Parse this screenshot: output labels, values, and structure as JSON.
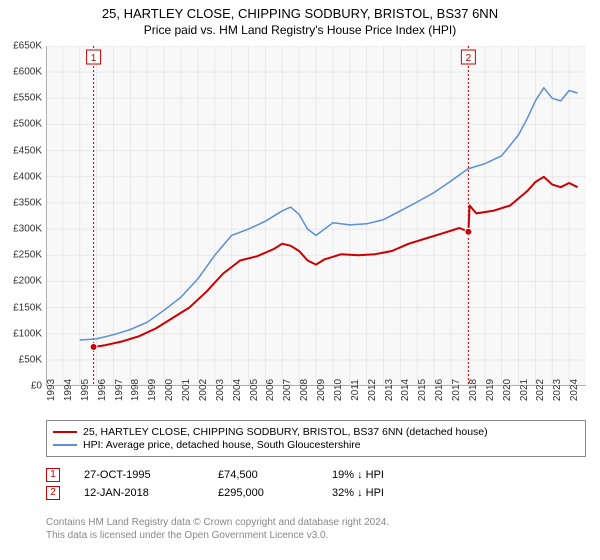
{
  "title": "25, HARTLEY CLOSE, CHIPPING SODBURY, BRISTOL, BS37 6NN",
  "subtitle": "Price paid vs. HM Land Registry's House Price Index (HPI)",
  "chart": {
    "type": "line",
    "background_color": "#f8f8f8",
    "grid_color": "#e8e8e8",
    "axis_color": "#666666",
    "x_min": 1993,
    "x_max": 2025,
    "y_min": 0,
    "y_max": 650000,
    "y_tick_step": 50000,
    "y_ticks": [
      "£0",
      "£50K",
      "£100K",
      "£150K",
      "£200K",
      "£250K",
      "£300K",
      "£350K",
      "£400K",
      "£450K",
      "£500K",
      "£550K",
      "£600K",
      "£650K"
    ],
    "x_ticks": [
      1993,
      1994,
      1995,
      1996,
      1997,
      1998,
      1999,
      2000,
      2001,
      2002,
      2003,
      2004,
      2005,
      2006,
      2007,
      2008,
      2009,
      2010,
      2011,
      2012,
      2013,
      2014,
      2015,
      2016,
      2017,
      2018,
      2019,
      2020,
      2021,
      2022,
      2023,
      2024
    ],
    "series": [
      {
        "name": "price_paid",
        "color": "#cc0000",
        "width": 2,
        "points": [
          [
            1995.82,
            74500
          ],
          [
            1996.5,
            78000
          ],
          [
            1997.5,
            85000
          ],
          [
            1998.5,
            95000
          ],
          [
            1999.5,
            110000
          ],
          [
            2000.5,
            130000
          ],
          [
            2001.5,
            150000
          ],
          [
            2002.5,
            180000
          ],
          [
            2003.5,
            215000
          ],
          [
            2004.5,
            240000
          ],
          [
            2005.5,
            248000
          ],
          [
            2006.5,
            262000
          ],
          [
            2007.0,
            272000
          ],
          [
            2007.5,
            268000
          ],
          [
            2008.0,
            258000
          ],
          [
            2008.5,
            240000
          ],
          [
            2009.0,
            232000
          ],
          [
            2009.5,
            242000
          ],
          [
            2010.5,
            252000
          ],
          [
            2011.5,
            250000
          ],
          [
            2012.5,
            252000
          ],
          [
            2013.5,
            258000
          ],
          [
            2014.5,
            272000
          ],
          [
            2015.5,
            282000
          ],
          [
            2016.5,
            292000
          ],
          [
            2017.5,
            302000
          ],
          [
            2018.03,
            295000
          ],
          [
            2018.1,
            345000
          ],
          [
            2018.5,
            330000
          ],
          [
            2019.5,
            335000
          ],
          [
            2020.5,
            345000
          ],
          [
            2021.5,
            372000
          ],
          [
            2022.0,
            390000
          ],
          [
            2022.5,
            400000
          ],
          [
            2023.0,
            385000
          ],
          [
            2023.5,
            380000
          ],
          [
            2024.0,
            388000
          ],
          [
            2024.5,
            380000
          ]
        ]
      },
      {
        "name": "hpi",
        "color": "#5b8fd6",
        "width": 1.5,
        "points": [
          [
            1995.0,
            88000
          ],
          [
            1996.0,
            90000
          ],
          [
            1997.0,
            98000
          ],
          [
            1998.0,
            108000
          ],
          [
            1999.0,
            122000
          ],
          [
            2000.0,
            145000
          ],
          [
            2001.0,
            170000
          ],
          [
            2002.0,
            205000
          ],
          [
            2003.0,
            250000
          ],
          [
            2004.0,
            288000
          ],
          [
            2005.0,
            300000
          ],
          [
            2006.0,
            315000
          ],
          [
            2007.0,
            335000
          ],
          [
            2007.5,
            342000
          ],
          [
            2008.0,
            328000
          ],
          [
            2008.5,
            300000
          ],
          [
            2009.0,
            288000
          ],
          [
            2009.5,
            300000
          ],
          [
            2010.0,
            312000
          ],
          [
            2011.0,
            308000
          ],
          [
            2012.0,
            310000
          ],
          [
            2013.0,
            318000
          ],
          [
            2014.0,
            335000
          ],
          [
            2015.0,
            352000
          ],
          [
            2016.0,
            370000
          ],
          [
            2017.0,
            392000
          ],
          [
            2018.0,
            415000
          ],
          [
            2019.0,
            425000
          ],
          [
            2020.0,
            440000
          ],
          [
            2021.0,
            480000
          ],
          [
            2021.5,
            510000
          ],
          [
            2022.0,
            545000
          ],
          [
            2022.5,
            570000
          ],
          [
            2023.0,
            550000
          ],
          [
            2023.5,
            545000
          ],
          [
            2024.0,
            565000
          ],
          [
            2024.5,
            560000
          ]
        ]
      }
    ],
    "sale_markers": [
      {
        "num": "1",
        "x": 1995.82,
        "y": 74500,
        "color": "#cc0000"
      },
      {
        "num": "2",
        "x": 2018.03,
        "y": 295000,
        "color": "#cc0000"
      }
    ]
  },
  "legend": {
    "items": [
      {
        "color": "#cc0000",
        "label": "25, HARTLEY CLOSE, CHIPPING SODBURY, BRISTOL, BS37 6NN (detached house)"
      },
      {
        "color": "#5b8fd6",
        "label": "HPI: Average price, detached house, South Gloucestershire"
      }
    ]
  },
  "sales": [
    {
      "num": "1",
      "color": "#cc0000",
      "date": "27-OCT-1995",
      "price": "£74,500",
      "diff": "19% ↓ HPI"
    },
    {
      "num": "2",
      "color": "#cc0000",
      "date": "12-JAN-2018",
      "price": "£295,000",
      "diff": "32% ↓ HPI"
    }
  ],
  "footer": {
    "line1": "Contains HM Land Registry data © Crown copyright and database right 2024.",
    "line2": "This data is licensed under the Open Government Licence v3.0."
  }
}
